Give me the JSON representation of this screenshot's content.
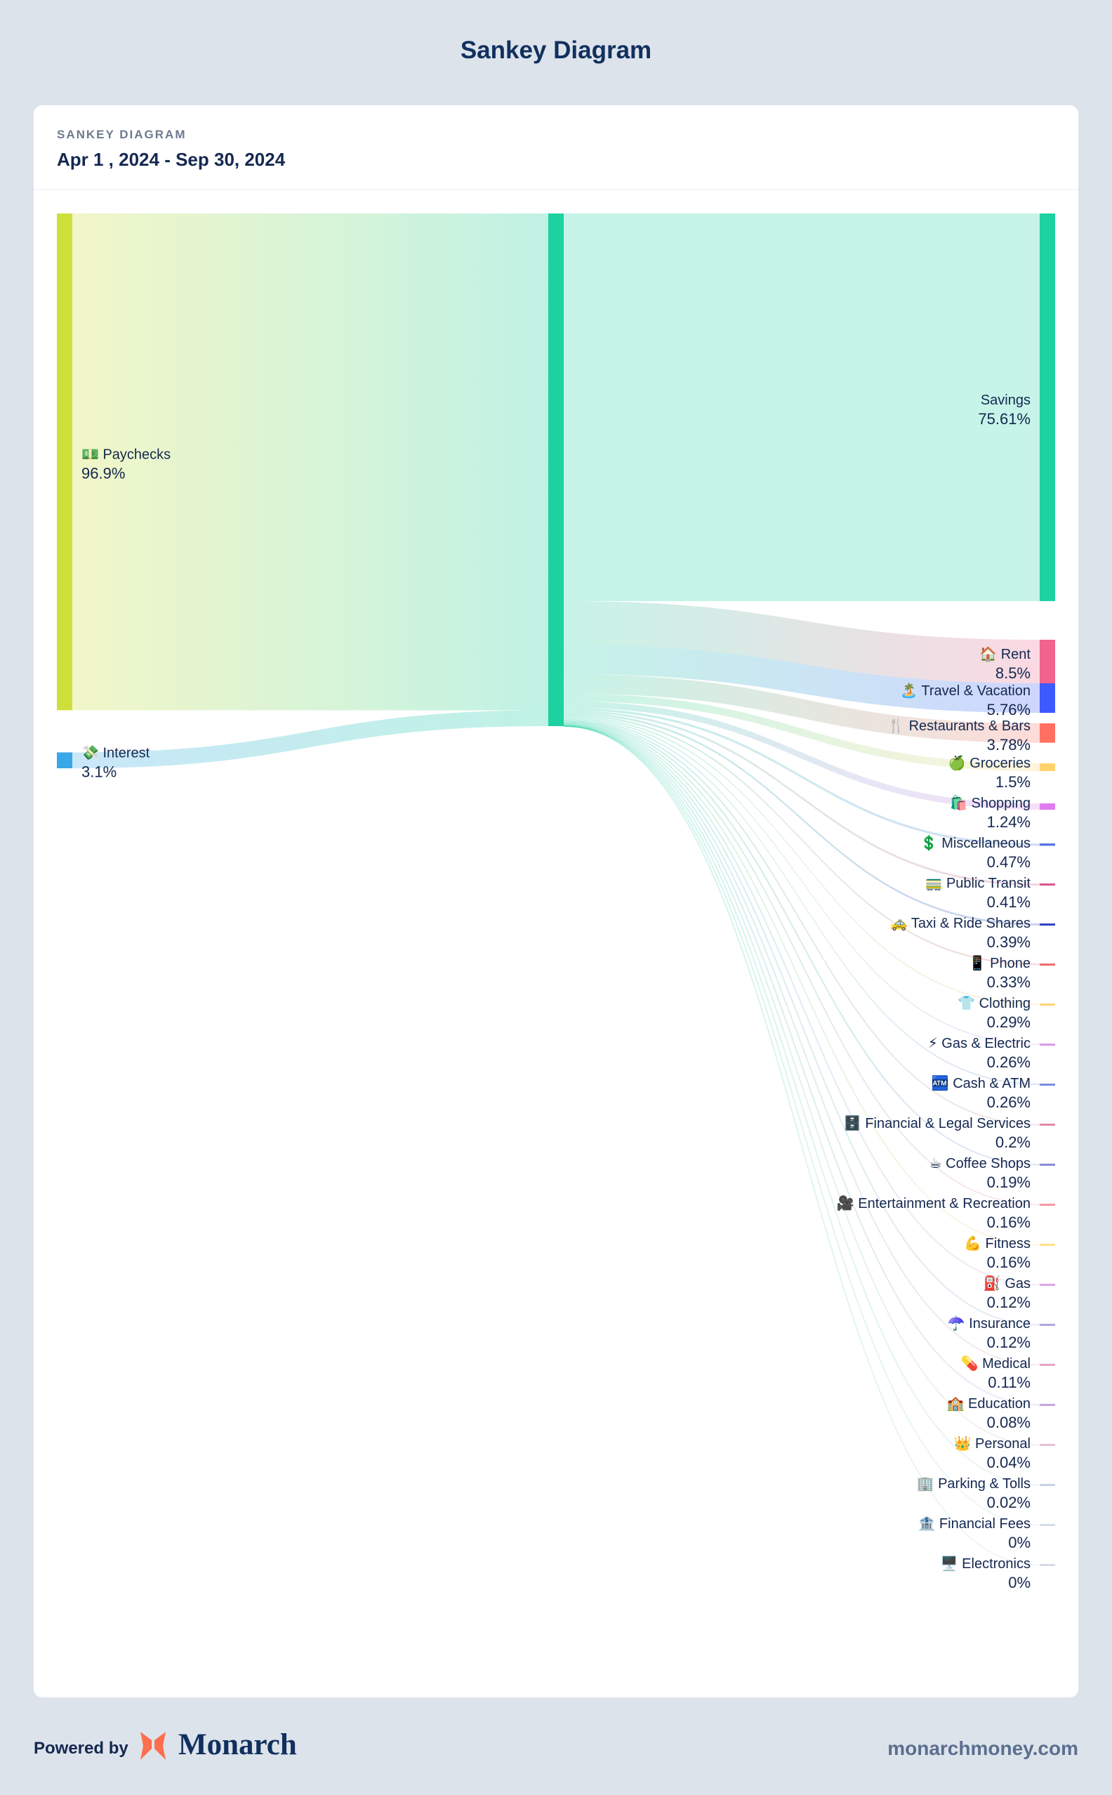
{
  "page": {
    "title": "Sankey Diagram"
  },
  "card": {
    "kicker": "SANKEY DIAGRAM",
    "date_range": "Apr 1 , 2024 - Sep 30, 2024"
  },
  "footer": {
    "powered_by": "Powered by",
    "brand": "Monarch",
    "url": "monarchmoney.com"
  },
  "colors": {
    "background": "#dde3eb",
    "title": "#11305e",
    "hub": "#1dd1a1",
    "logo": "#ff6e4f"
  },
  "chart_data": {
    "type": "sankey",
    "hub_color": "#1dd1a1",
    "sources": [
      {
        "name": "Paychecks",
        "icon": "💵",
        "percent_label": "96.9%",
        "value": 96.9,
        "color": "#cfdf3a"
      },
      {
        "name": "Interest",
        "icon": "💸",
        "percent_label": "3.1%",
        "value": 3.1,
        "color": "#3aa8e8"
      }
    ],
    "targets": [
      {
        "name": "Savings",
        "icon": "",
        "percent_label": "75.61%",
        "value": 75.61,
        "color": "#1dd1a1"
      },
      {
        "name": "Rent",
        "icon": "🏠",
        "percent_label": "8.5%",
        "value": 8.5,
        "color": "#f0648e"
      },
      {
        "name": "Travel & Vacation",
        "icon": "🏝️",
        "percent_label": "5.76%",
        "value": 5.76,
        "color": "#3d5afe"
      },
      {
        "name": "Restaurants & Bars",
        "icon": "🍴",
        "percent_label": "3.78%",
        "value": 3.78,
        "color": "#ff7062"
      },
      {
        "name": "Groceries",
        "icon": "🍏",
        "percent_label": "1.5%",
        "value": 1.5,
        "color": "#ffd36b"
      },
      {
        "name": "Shopping",
        "icon": "🛍️",
        "percent_label": "1.24%",
        "value": 1.24,
        "color": "#e07cf0"
      },
      {
        "name": "Miscellaneous",
        "icon": "💲",
        "percent_label": "0.47%",
        "value": 0.47,
        "color": "#5b77e0"
      },
      {
        "name": "Public Transit",
        "icon": "🚃",
        "percent_label": "0.41%",
        "value": 0.41,
        "color": "#d9578a"
      },
      {
        "name": "Taxi & Ride Shares",
        "icon": "🚕",
        "percent_label": "0.39%",
        "value": 0.39,
        "color": "#3344c2"
      },
      {
        "name": "Phone",
        "icon": "📱",
        "percent_label": "0.33%",
        "value": 0.33,
        "color": "#ee6b6b"
      },
      {
        "name": "Clothing",
        "icon": "👕",
        "percent_label": "0.29%",
        "value": 0.29,
        "color": "#ffd27a"
      },
      {
        "name": "Gas & Electric",
        "icon": "⚡",
        "percent_label": "0.26%",
        "value": 0.26,
        "color": "#d99be6"
      },
      {
        "name": "Cash & ATM",
        "icon": "🏧",
        "percent_label": "0.26%",
        "value": 0.26,
        "color": "#7a8fe0"
      },
      {
        "name": "Financial & Legal Services",
        "icon": "🗄️",
        "percent_label": "0.2%",
        "value": 0.2,
        "color": "#e08aa6"
      },
      {
        "name": "Coffee Shops",
        "icon": "☕",
        "percent_label": "0.19%",
        "value": 0.19,
        "color": "#8a8fd6"
      },
      {
        "name": "Entertainment & Recreation",
        "icon": "🎥",
        "percent_label": "0.16%",
        "value": 0.16,
        "color": "#f49aa6"
      },
      {
        "name": "Fitness",
        "icon": "💪",
        "percent_label": "0.16%",
        "value": 0.16,
        "color": "#ffe08a"
      },
      {
        "name": "Gas",
        "icon": "⛽",
        "percent_label": "0.12%",
        "value": 0.12,
        "color": "#dca6e8"
      },
      {
        "name": "Insurance",
        "icon": "☂️",
        "percent_label": "0.12%",
        "value": 0.12,
        "color": "#b0a6e0"
      },
      {
        "name": "Medical",
        "icon": "💊",
        "percent_label": "0.11%",
        "value": 0.11,
        "color": "#e6a6c8"
      },
      {
        "name": "Education",
        "icon": "🏫",
        "percent_label": "0.08%",
        "value": 0.08,
        "color": "#c2a6e0"
      },
      {
        "name": "Personal",
        "icon": "👑",
        "percent_label": "0.04%",
        "value": 0.04,
        "color": "#e6c2d6"
      },
      {
        "name": "Parking & Tolls",
        "icon": "🏢",
        "percent_label": "0.02%",
        "value": 0.02,
        "color": "#c8d2e6"
      },
      {
        "name": "Financial Fees",
        "icon": "🏦",
        "percent_label": "0%",
        "value": 0,
        "color": "#d6dce8"
      },
      {
        "name": "Electronics",
        "icon": "🖥️",
        "percent_label": "0%",
        "value": 0,
        "color": "#d6dce8"
      }
    ]
  }
}
